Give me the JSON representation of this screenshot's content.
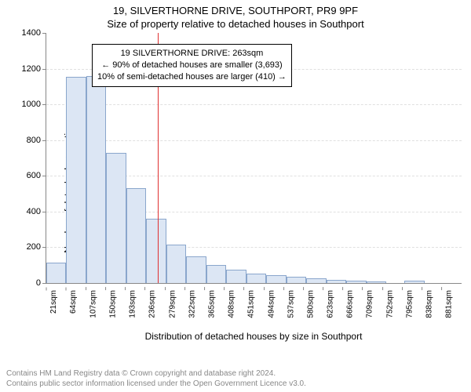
{
  "title_line1": "19, SILVERTHORNE DRIVE, SOUTHPORT, PR9 9PF",
  "title_line2": "Size of property relative to detached houses in Southport",
  "y_axis_label": "Number of detached properties",
  "x_axis_label": "Distribution of detached houses by size in Southport",
  "footer_line1": "Contains HM Land Registry data © Crown copyright and database right 2024.",
  "footer_line2": "Contains public sector information licensed under the Open Government Licence v3.0.",
  "annotation": {
    "line1": "19 SILVERTHORNE DRIVE: 263sqm",
    "line2": "← 90% of detached houses are smaller (3,693)",
    "line3": "10% of semi-detached houses are larger (410) →"
  },
  "chart": {
    "type": "histogram",
    "y_max": 1400,
    "y_ticks": [
      0,
      200,
      400,
      600,
      800,
      1000,
      1200,
      1400
    ],
    "x_tick_labels": [
      "21sqm",
      "64sqm",
      "107sqm",
      "150sqm",
      "193sqm",
      "236sqm",
      "279sqm",
      "322sqm",
      "365sqm",
      "408sqm",
      "451sqm",
      "494sqm",
      "537sqm",
      "580sqm",
      "623sqm",
      "666sqm",
      "709sqm",
      "752sqm",
      "795sqm",
      "838sqm",
      "881sqm"
    ],
    "bar_values": [
      115,
      1155,
      1160,
      730,
      530,
      360,
      215,
      150,
      100,
      75,
      52,
      42,
      36,
      28,
      18,
      12,
      8,
      0,
      15,
      0,
      0
    ],
    "bar_fill_color": "#dce6f4",
    "bar_border_color": "#8aa6cc",
    "reference_line": {
      "value_sqm": 263,
      "color": "#e03030"
    },
    "grid_color": "#e0e0e0",
    "axis_color": "#888888",
    "background_color": "#ffffff"
  }
}
